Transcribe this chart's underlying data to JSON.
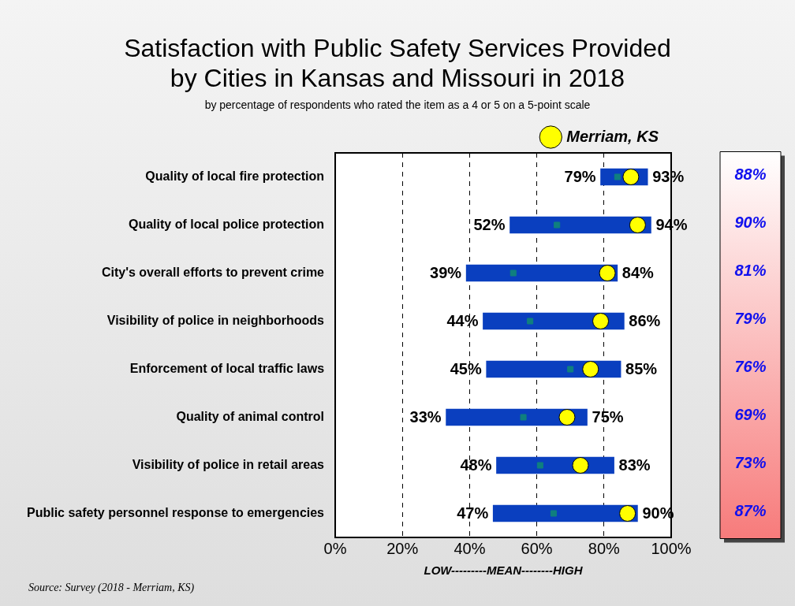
{
  "chart_data": {
    "type": "bar",
    "orientation": "horizontal",
    "title": "Satisfaction with Public Safety Services Provided by Cities in Kansas and Missouri in 2018",
    "subtitle": "by percentage of respondents who rated the item as a 4 or 5 on a 5-point scale",
    "xlabel": "LOW---------MEAN--------HIGH",
    "categories": [
      "Quality of local fire protection",
      "Quality of local police protection",
      "City's overall efforts to prevent crime",
      "Visibility of police in neighborhoods",
      "Enforcement of local traffic laws",
      "Quality of animal control",
      "Visibility of police in retail areas",
      "Public safety personnel response to emergencies"
    ],
    "series": [
      {
        "type": "bar",
        "color": "#0a3fbf",
        "base": [
          79,
          52,
          39,
          44,
          45,
          33,
          48,
          47
        ],
        "values": [
          14,
          42,
          45,
          42,
          40,
          42,
          35,
          43
        ]
      },
      {
        "type": "scatter",
        "color": "#0f7f7f",
        "values": [
          84,
          66,
          53,
          58,
          70,
          56,
          61,
          65
        ]
      },
      {
        "type": "scatter",
        "name": "Merriam, KS",
        "color": "#ffff00",
        "marker": "circle",
        "values": [
          88,
          90,
          81,
          79,
          76,
          69,
          73,
          87
        ],
        "value_labels": [
          "88%",
          "90%",
          "81%",
          "79%",
          "76%",
          "69%",
          "73%",
          "87%"
        ]
      }
    ],
    "xlim": [
      0,
      100
    ],
    "xticks": [
      {
        "value": 0,
        "label": "0%"
      },
      {
        "value": 20,
        "label": "20%"
      },
      {
        "value": 40,
        "label": "40%"
      },
      {
        "value": 60,
        "label": "60%"
      },
      {
        "value": 80,
        "label": "80%"
      },
      {
        "value": 100,
        "label": "100%"
      }
    ],
    "grid": "x",
    "legend": "top right",
    "annotations": [
      {
        "text": "79%",
        "x": 79,
        "y": "Quality of local fire protection"
      },
      {
        "text": "93%",
        "x": 93,
        "y": "Quality of local fire protection"
      },
      {
        "text": "52%",
        "x": 52,
        "y": "Quality of local police protection"
      },
      {
        "text": "94%",
        "x": 94,
        "y": "Quality of local police protection"
      },
      {
        "text": "39%",
        "x": 39,
        "y": "City's overall efforts to prevent crime"
      },
      {
        "text": "84%",
        "x": 84,
        "y": "City's overall efforts to prevent crime"
      },
      {
        "text": "44%",
        "x": 44,
        "y": "Visibility of police in neighborhoods"
      },
      {
        "text": "86%",
        "x": 86,
        "y": "Visibility of police in neighborhoods"
      },
      {
        "text": "45%",
        "x": 45,
        "y": "Enforcement of local traffic laws"
      },
      {
        "text": "85%",
        "x": 85,
        "y": "Enforcement of local traffic laws"
      },
      {
        "text": "33%",
        "x": 33,
        "y": "Quality of animal control"
      },
      {
        "text": "75%",
        "x": 75,
        "y": "Quality of animal control"
      },
      {
        "text": "48%",
        "x": 48,
        "y": "Visibility of police in retail areas"
      },
      {
        "text": "83%",
        "x": 83,
        "y": "Visibility of police in retail areas"
      },
      {
        "text": "47%",
        "x": 47,
        "y": "Public safety personnel response to emergencies"
      },
      {
        "text": "90%",
        "x": 90,
        "y": "Public safety personnel response to emergencies"
      },
      "Source:  Survey (2018 - Merriam, KS)"
    ]
  }
}
